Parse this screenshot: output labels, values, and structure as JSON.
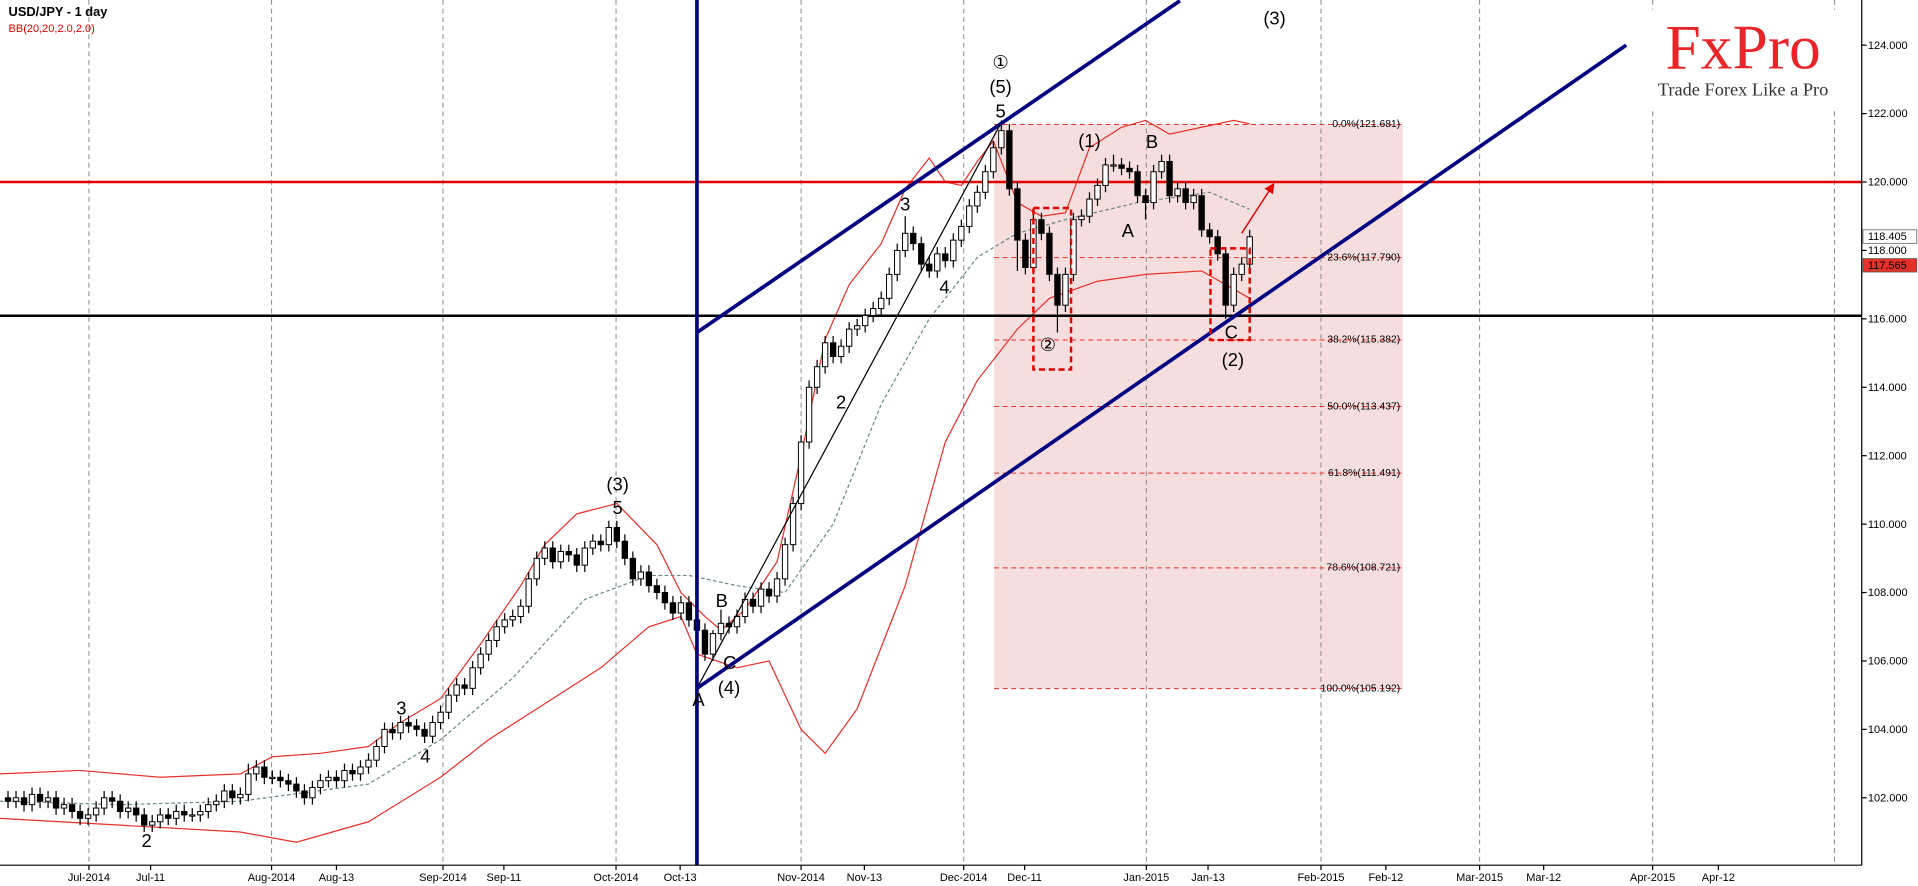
{
  "chart_data": {
    "type": "candlestick",
    "title": "USD/JPY - 1 day",
    "indicator_label": "BB(20,20,2.0,2.0)",
    "x": [
      1,
      2,
      3,
      4,
      5,
      6,
      7,
      8,
      9,
      10,
      11,
      12,
      13,
      14,
      15,
      16,
      17,
      18,
      19,
      20,
      21,
      22,
      23,
      24,
      25,
      26,
      27,
      28,
      29,
      30,
      31,
      32,
      33,
      34,
      35,
      36,
      37,
      38,
      39,
      40,
      41,
      42,
      43,
      44,
      45,
      46,
      47,
      48,
      49,
      50,
      51,
      52,
      53,
      54,
      55,
      56,
      57,
      58,
      59,
      60,
      61,
      62,
      63,
      64,
      65,
      66,
      67,
      68,
      69,
      70,
      71,
      72,
      73,
      74,
      75,
      76,
      77,
      78,
      79,
      80,
      81,
      82,
      83,
      84,
      85,
      86,
      87,
      88,
      89,
      90,
      91,
      92,
      93,
      94,
      95,
      96,
      97,
      98,
      99,
      100,
      101,
      102,
      103,
      104,
      105,
      106,
      107,
      108,
      109,
      110,
      111,
      112,
      113,
      114,
      115,
      116,
      117,
      118,
      119,
      120,
      121,
      122,
      123,
      124,
      125,
      126,
      127,
      128,
      129,
      130,
      131,
      132,
      133,
      134,
      135,
      136,
      137,
      138,
      139,
      140,
      141,
      142,
      143,
      144,
      145,
      146,
      147,
      148,
      149,
      150,
      151,
      152,
      153,
      154,
      155,
      156
    ],
    "open": [
      102.0,
      101.9,
      102.0,
      101.8,
      102.1,
      101.9,
      102.0,
      101.7,
      101.8,
      101.6,
      101.4,
      101.5,
      101.7,
      102.0,
      101.9,
      101.6,
      101.7,
      101.5,
      101.2,
      101.3,
      101.5,
      101.4,
      101.6,
      101.5,
      101.5,
      101.6,
      101.8,
      101.9,
      102.2,
      102.0,
      102.1,
      102.7,
      102.9,
      102.6,
      102.6,
      102.5,
      102.4,
      102.2,
      102.0,
      102.3,
      102.5,
      102.6,
      102.5,
      102.8,
      102.7,
      102.9,
      103.1,
      103.5,
      104.0,
      103.9,
      104.2,
      104.1,
      104.0,
      103.8,
      104.2,
      104.5,
      105.0,
      105.3,
      105.2,
      105.8,
      106.2,
      106.6,
      107.0,
      107.2,
      107.3,
      107.6,
      108.4,
      109.0,
      109.3,
      108.9,
      109.2,
      109.1,
      108.8,
      109.3,
      109.5,
      109.4,
      109.9,
      109.5,
      109.0,
      108.4,
      108.6,
      108.2,
      108.0,
      107.7,
      107.4,
      107.7,
      107.2,
      106.9,
      106.2,
      106.8,
      107.1,
      107.0,
      107.3,
      107.8,
      107.6,
      108.1,
      107.9,
      108.4,
      109.4,
      110.6,
      112.4,
      114.0,
      114.6,
      115.3,
      114.9,
      115.2,
      115.7,
      115.8,
      116.1,
      116.3,
      116.6,
      117.3,
      118.0,
      118.5,
      118.2,
      117.6,
      117.4,
      117.9,
      117.7,
      118.3,
      118.7,
      119.3,
      119.7,
      120.3,
      121.0,
      121.5,
      119.8,
      118.3,
      117.5,
      118.9,
      118.5,
      117.3,
      116.4,
      117.3,
      118.9,
      119.0,
      119.5,
      119.9,
      120.5,
      120.5,
      120.4,
      120.3,
      119.6,
      119.4,
      120.3,
      120.6,
      119.6,
      119.8,
      119.4,
      119.6,
      118.6,
      118.4,
      117.9,
      116.4,
      117.3,
      117.6
    ],
    "high": [
      102.2,
      102.2,
      102.2,
      102.3,
      102.3,
      102.2,
      102.2,
      102.0,
      102.0,
      101.8,
      101.7,
      101.9,
      102.2,
      102.2,
      102.1,
      101.9,
      101.9,
      101.7,
      101.5,
      101.7,
      101.7,
      101.8,
      101.8,
      101.7,
      101.8,
      102.0,
      102.1,
      102.4,
      102.4,
      102.3,
      103.0,
      103.1,
      103.1,
      102.8,
      102.8,
      102.7,
      102.6,
      102.4,
      102.5,
      102.7,
      102.8,
      102.8,
      103.0,
      103.0,
      103.1,
      103.3,
      103.7,
      104.2,
      104.2,
      104.4,
      104.4,
      104.3,
      104.2,
      104.4,
      104.7,
      105.2,
      105.5,
      105.5,
      106.0,
      106.4,
      106.8,
      107.2,
      107.4,
      107.5,
      107.8,
      108.6,
      109.2,
      109.5,
      109.5,
      109.4,
      109.4,
      109.3,
      109.5,
      109.7,
      109.7,
      110.1,
      110.1,
      109.7,
      109.2,
      108.8,
      108.8,
      108.4,
      108.2,
      107.9,
      107.9,
      107.9,
      107.4,
      107.1,
      106.9,
      107.5,
      107.3,
      107.5,
      108.0,
      108.0,
      108.3,
      108.3,
      108.6,
      109.6,
      110.8,
      112.6,
      114.2,
      114.8,
      115.5,
      115.5,
      115.4,
      115.9,
      116.0,
      116.3,
      116.5,
      116.8,
      117.5,
      118.2,
      119.0,
      118.7,
      118.4,
      117.8,
      118.1,
      118.1,
      118.5,
      118.9,
      119.5,
      119.9,
      120.5,
      121.2,
      121.8,
      121.7,
      120.0,
      118.5,
      119.1,
      119.1,
      118.7,
      117.5,
      117.5,
      119.1,
      119.2,
      119.7,
      120.1,
      120.7,
      120.8,
      120.7,
      120.6,
      120.5,
      119.8,
      120.5,
      120.8,
      120.8,
      120.0,
      120.0,
      119.8,
      119.8,
      118.8,
      118.6,
      118.1,
      117.5,
      117.8,
      118.6
    ],
    "low": [
      101.7,
      101.7,
      101.6,
      101.6,
      101.7,
      101.7,
      101.5,
      101.5,
      101.4,
      101.2,
      101.2,
      101.3,
      101.5,
      101.7,
      101.4,
      101.4,
      101.3,
      101.0,
      101.0,
      101.1,
      101.2,
      101.2,
      101.3,
      101.3,
      101.3,
      101.4,
      101.6,
      101.7,
      101.8,
      101.8,
      101.9,
      102.5,
      102.4,
      102.4,
      102.3,
      102.2,
      102.0,
      101.8,
      101.8,
      102.1,
      102.3,
      102.3,
      102.3,
      102.5,
      102.5,
      102.7,
      102.9,
      103.3,
      103.7,
      103.7,
      103.9,
      103.8,
      103.6,
      103.6,
      104.0,
      104.3,
      104.8,
      105.0,
      105.0,
      105.6,
      106.0,
      106.4,
      106.8,
      107.0,
      107.1,
      107.4,
      108.2,
      108.8,
      108.7,
      108.7,
      108.9,
      108.6,
      108.6,
      109.1,
      109.2,
      109.2,
      109.3,
      108.8,
      108.2,
      108.2,
      108.0,
      107.8,
      107.5,
      107.2,
      107.2,
      107.0,
      105.2,
      106.0,
      106.0,
      106.6,
      106.8,
      106.8,
      107.1,
      107.4,
      107.4,
      107.7,
      107.7,
      108.2,
      109.2,
      110.4,
      112.2,
      113.8,
      114.4,
      114.7,
      114.7,
      115.0,
      115.5,
      115.6,
      115.9,
      116.1,
      116.4,
      117.1,
      117.8,
      118.0,
      117.4,
      117.2,
      117.2,
      117.5,
      117.5,
      118.1,
      118.5,
      119.1,
      119.5,
      120.1,
      120.8,
      119.6,
      117.4,
      117.3,
      117.3,
      118.3,
      117.1,
      115.6,
      116.2,
      117.1,
      118.7,
      118.8,
      119.3,
      119.7,
      120.3,
      120.2,
      120.1,
      119.4,
      118.9,
      119.2,
      120.1,
      119.4,
      119.4,
      119.2,
      119.2,
      118.4,
      118.2,
      117.7,
      116.0,
      116.2,
      117.1,
      117.4
    ],
    "close": [
      101.9,
      102.0,
      101.8,
      102.1,
      101.9,
      102.0,
      101.7,
      101.8,
      101.6,
      101.4,
      101.5,
      101.7,
      102.0,
      101.9,
      101.6,
      101.7,
      101.5,
      101.2,
      101.3,
      101.5,
      101.4,
      101.6,
      101.5,
      101.5,
      101.6,
      101.8,
      101.9,
      102.2,
      102.0,
      102.1,
      102.7,
      102.9,
      102.6,
      102.6,
      102.5,
      102.4,
      102.2,
      102.0,
      102.3,
      102.5,
      102.6,
      102.5,
      102.8,
      102.7,
      102.9,
      103.1,
      103.5,
      104.0,
      103.9,
      104.2,
      104.1,
      104.0,
      103.8,
      104.2,
      104.5,
      105.0,
      105.3,
      105.2,
      105.8,
      106.2,
      106.6,
      107.0,
      107.2,
      107.3,
      107.6,
      108.4,
      109.0,
      109.3,
      108.9,
      109.2,
      109.1,
      108.8,
      109.3,
      109.5,
      109.4,
      109.9,
      109.5,
      109.0,
      108.4,
      108.6,
      108.2,
      108.0,
      107.7,
      107.4,
      107.7,
      107.2,
      106.9,
      106.2,
      106.8,
      107.1,
      107.0,
      107.3,
      107.8,
      107.6,
      108.1,
      107.9,
      108.4,
      109.4,
      110.6,
      112.4,
      114.0,
      114.6,
      115.3,
      114.9,
      115.2,
      115.7,
      115.8,
      116.1,
      116.3,
      116.6,
      117.3,
      118.0,
      118.5,
      118.2,
      117.6,
      117.4,
      117.9,
      117.7,
      118.3,
      118.7,
      119.3,
      119.7,
      120.3,
      121.0,
      121.5,
      119.8,
      118.3,
      117.5,
      118.9,
      118.5,
      117.3,
      116.4,
      117.3,
      118.9,
      119.0,
      119.5,
      119.9,
      120.5,
      120.5,
      120.4,
      120.3,
      119.6,
      119.4,
      120.3,
      120.6,
      119.6,
      119.8,
      119.4,
      119.6,
      118.6,
      118.4,
      117.9,
      116.4,
      117.3,
      117.6,
      118.4
    ],
    "up_color": "#ffffff",
    "down_color": "#000000",
    "bands": [
      {
        "color": "#e8302a",
        "style": "solid",
        "x": [
          0,
          10,
          20,
          30,
          34,
          40,
          46,
          50,
          55,
          60,
          65,
          68,
          72,
          77,
          82,
          85,
          88,
          90,
          93,
          97,
          100,
          103,
          106,
          110,
          113,
          116,
          118,
          120,
          122,
          124,
          127,
          130,
          133,
          136,
          140,
          143,
          146,
          150,
          154,
          156
        ],
        "values": [
          102.7,
          102.8,
          102.6,
          102.7,
          103.2,
          103.3,
          103.5,
          104.2,
          104.9,
          106.5,
          108.2,
          109.4,
          110.3,
          110.6,
          109.4,
          108.0,
          107.3,
          106.9,
          107.5,
          108.9,
          112.0,
          115.4,
          117.0,
          118.2,
          119.8,
          120.7,
          120.0,
          119.9,
          120.6,
          121.2,
          119.4,
          119.0,
          119.1,
          121.0,
          121.6,
          121.8,
          121.4,
          121.6,
          121.8,
          121.7
        ]
      },
      {
        "color": "#6e8a80",
        "style": "dashed",
        "x": [
          0,
          15,
          30,
          46,
          55,
          64,
          73,
          81,
          86,
          92,
          98,
          104,
          110,
          116,
          122,
          127,
          133,
          142,
          151,
          156
        ],
        "values": [
          101.9,
          101.8,
          101.9,
          102.4,
          103.7,
          105.5,
          107.8,
          108.5,
          108.5,
          108.2,
          108.0,
          110.0,
          113.5,
          116.0,
          117.8,
          118.5,
          118.9,
          119.4,
          119.7,
          119.2
        ]
      },
      {
        "color": "#e8302a",
        "style": "solid",
        "x": [
          0,
          15,
          30,
          37,
          46,
          55,
          61,
          67,
          75,
          81,
          85,
          87,
          92,
          96,
          100,
          103,
          107,
          113,
          118,
          122,
          127,
          131,
          137,
          143,
          150,
          153,
          156
        ],
        "values": [
          101.4,
          101.2,
          101.0,
          100.7,
          101.3,
          102.6,
          103.7,
          104.6,
          105.8,
          107.0,
          107.3,
          106.2,
          105.8,
          106.0,
          104.0,
          103.3,
          104.6,
          108.2,
          112.4,
          114.2,
          115.7,
          116.6,
          117.1,
          117.3,
          117.4,
          117.0,
          116.6
        ]
      }
    ],
    "xlim": [
      0,
      232.4
    ],
    "ylim": [
      100.03,
      125.32
    ],
    "xticks": [
      {
        "value": 11.1,
        "label": "Jul-2014"
      },
      {
        "value": 18.8,
        "label": "Jul-11"
      },
      {
        "value": 33.9,
        "label": "Aug-2014"
      },
      {
        "value": 42,
        "label": "Aug-13"
      },
      {
        "value": 55.3,
        "label": "Sep-2014"
      },
      {
        "value": 62.9,
        "label": "Sep-11"
      },
      {
        "value": 76.9,
        "label": "Oct-2014"
      },
      {
        "value": 84.9,
        "label": "Oct-13"
      },
      {
        "value": 100,
        "label": "Nov-2014"
      },
      {
        "value": 107.9,
        "label": "Nov-13"
      },
      {
        "value": 120.3,
        "label": "Dec-2014"
      },
      {
        "value": 127.9,
        "label": "Dec-11"
      },
      {
        "value": 143.1,
        "label": "Jan-2015"
      },
      {
        "value": 150.8,
        "label": "Jan-13"
      },
      {
        "value": 164.9,
        "label": "Feb-2015"
      },
      {
        "value": 173,
        "label": "Feb-12"
      },
      {
        "value": 184.7,
        "label": "Mar-2015"
      },
      {
        "value": 192.7,
        "label": "Mar-12"
      },
      {
        "value": 206.3,
        "label": "Apr-2015"
      },
      {
        "value": 214.5,
        "label": "Apr-12"
      }
    ],
    "xgrid": [
      11.1,
      33.9,
      55.3,
      76.9,
      100,
      120.3,
      143.1,
      164.9,
      184.7,
      206.3,
      229
    ],
    "yticks": [
      {
        "value": 102,
        "label": "102.000"
      },
      {
        "value": 104,
        "label": "104.000"
      },
      {
        "value": 106,
        "label": "106.000"
      },
      {
        "value": 108,
        "label": "108.000"
      },
      {
        "value": 110,
        "label": "110.000"
      },
      {
        "value": 112,
        "label": "112.000"
      },
      {
        "value": 114,
        "label": "114.000"
      },
      {
        "value": 116,
        "label": "116.000"
      },
      {
        "value": 118,
        "label": "118.000"
      },
      {
        "value": 120,
        "label": "120.000"
      },
      {
        "value": 122,
        "label": "122.000"
      },
      {
        "value": 124,
        "label": "124.000"
      }
    ],
    "price_markers": [
      {
        "value": 118.405,
        "label": "118.405",
        "color": "#ffffff"
      },
      {
        "value": 117.565,
        "label": "117.565",
        "color": "#e8302a"
      }
    ],
    "hlines": [
      {
        "value": 120,
        "color": "#e00000"
      },
      {
        "value": 116.09,
        "color": "#000000"
      }
    ],
    "vlines": [
      {
        "value": 87,
        "color": "#000080"
      }
    ],
    "trendlines": [
      {
        "x": [
          87,
          147.3
        ],
        "y": [
          115.6,
          125.3
        ],
        "color": "#000080",
        "width": 3
      },
      {
        "x": [
          87,
          203
        ],
        "y": [
          105.2,
          124.0
        ],
        "color": "#000080",
        "width": 3
      },
      {
        "x": [
          87,
          124.9
        ],
        "y": [
          105.2,
          121.7
        ],
        "color": "#000000",
        "width": 1
      }
    ],
    "fibonacci": {
      "color": "#f6dede",
      "x": [
        124.1,
        175.1
      ],
      "levels": [
        {
          "value": 121.681,
          "label": "0.0%(121.681)"
        },
        {
          "value": 117.79,
          "label": "23.6%(117.790)"
        },
        {
          "value": 115.382,
          "label": "38.2%(115.382)"
        },
        {
          "value": 113.437,
          "label": "50.0%(113.437)"
        },
        {
          "value": 111.491,
          "label": "61.8%(111.491)"
        },
        {
          "value": 108.721,
          "label": "78.6%(108.721)"
        },
        {
          "value": 105.192,
          "label": "100.0%(105.192)"
        }
      ]
    },
    "highlight_boxes": [
      {
        "x": [
          129,
          133.7
        ],
        "y": [
          119.24,
          114.52
        ]
      },
      {
        "x": [
          151.1,
          156
        ],
        "y": [
          118.06,
          115.38
        ]
      }
    ],
    "arrow": {
      "x": [
        155,
        159
      ],
      "y": [
        118.5,
        119.95
      ]
    },
    "annotations": [
      {
        "text": "①",
        "x": 124.9,
        "y": 123.46
      },
      {
        "text": "(5)",
        "x": 124.9,
        "y": 122.75
      },
      {
        "text": "5",
        "x": 124.9,
        "y": 122.03
      },
      {
        "text": "3",
        "x": 113,
        "y": 119.31
      },
      {
        "text": "4",
        "x": 117.9,
        "y": 116.88
      },
      {
        "text": "2",
        "x": 105,
        "y": 113.52
      },
      {
        "text": "(1)",
        "x": 136,
        "y": 121.17
      },
      {
        "text": "A",
        "x": 140.8,
        "y": 118.53
      },
      {
        "text": "B",
        "x": 143.8,
        "y": 121.14
      },
      {
        "text": "②",
        "x": 130.8,
        "y": 115.2
      },
      {
        "text": "C",
        "x": 153.7,
        "y": 115.56
      },
      {
        "text": "(2)",
        "x": 153.9,
        "y": 114.77
      },
      {
        "text": "(3)",
        "x": 159.1,
        "y": 124.75
      },
      {
        "text": "(3)",
        "x": 77.1,
        "y": 111.12
      },
      {
        "text": "5",
        "x": 77.1,
        "y": 110.44
      },
      {
        "text": "3",
        "x": 50.1,
        "y": 104.57
      },
      {
        "text": "4",
        "x": 53.1,
        "y": 103.18
      },
      {
        "text": "2",
        "x": 18.3,
        "y": 100.71
      },
      {
        "text": "A",
        "x": 87.2,
        "y": 104.82
      },
      {
        "text": "B",
        "x": 90.1,
        "y": 107.72
      },
      {
        "text": "C",
        "x": 91.1,
        "y": 105.9
      },
      {
        "text": "(4)",
        "x": 91,
        "y": 105.18
      }
    ]
  },
  "logo": {
    "brand": "FxPro",
    "tagline": "Trade Forex Like a Pro"
  }
}
